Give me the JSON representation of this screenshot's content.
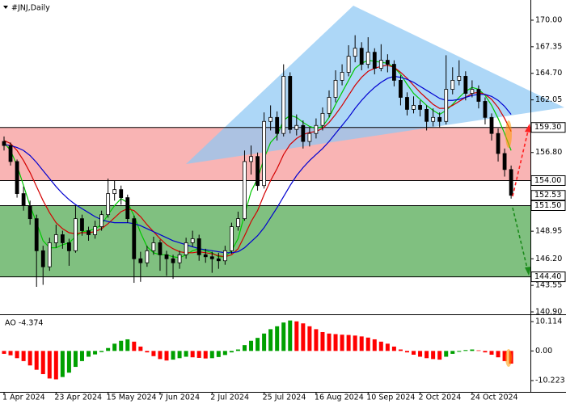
{
  "chart_data": {
    "type": "candlestick",
    "title": "#JNJ,Daily",
    "categories": [
      "1 Apr 2024",
      null,
      null,
      null,
      null,
      null,
      null,
      null,
      "23 Apr 2024",
      null,
      null,
      null,
      null,
      null,
      null,
      null,
      "15 May 2024",
      null,
      null,
      null,
      null,
      null,
      null,
      null,
      "7 Jun 2024",
      null,
      null,
      null,
      null,
      null,
      null,
      null,
      "2 Jul 2024",
      null,
      null,
      null,
      null,
      null,
      null,
      null,
      "25 Jul 2024",
      null,
      null,
      null,
      null,
      null,
      null,
      null,
      "16 Aug 2024",
      null,
      null,
      null,
      null,
      null,
      null,
      null,
      "10 Sep 2024",
      null,
      null,
      null,
      null,
      null,
      null,
      null,
      "2 Oct 2024",
      null,
      null,
      null,
      null,
      null,
      null,
      null,
      "24 Oct 2024",
      null,
      null,
      null,
      null,
      null,
      null
    ],
    "candles": {
      "open": [
        157.9,
        157.5,
        155.9,
        152.7,
        151.5,
        150.2,
        147.0,
        145.4,
        147.8,
        148.6,
        147.8,
        147.0,
        150.2,
        149.0,
        148.6,
        149.4,
        150.6,
        152.7,
        153.1,
        152.3,
        150.2,
        146.2,
        145.8,
        147.0,
        147.8,
        146.6,
        146.2,
        145.8,
        146.6,
        147.8,
        148.2,
        146.6,
        146.4,
        146.2,
        146.0,
        147.0,
        149.4,
        150.2,
        155.9,
        156.4,
        153.5,
        159.9,
        160.3,
        158.7,
        164.4,
        159.1,
        159.5,
        157.9,
        158.7,
        159.5,
        160.7,
        162.3,
        164.0,
        164.8,
        166.4,
        167.2,
        165.6,
        166.8,
        165.2,
        166.0,
        165.6,
        164.0,
        162.3,
        161.1,
        161.5,
        161.1,
        159.9,
        160.3,
        159.9,
        163.1,
        164.0,
        164.4,
        162.7,
        163.1,
        161.9,
        160.3,
        158.7,
        156.7,
        155.1
      ],
      "high": [
        158.4,
        157.8,
        156.1,
        153.4,
        152.0,
        150.6,
        147.5,
        148.3,
        149.6,
        149.0,
        148.2,
        151.5,
        150.6,
        149.4,
        150.0,
        151.0,
        154.2,
        154.0,
        153.5,
        152.6,
        150.5,
        146.9,
        147.5,
        148.4,
        148.1,
        147.0,
        146.6,
        147.0,
        148.3,
        149.0,
        148.6,
        147.2,
        146.9,
        146.8,
        147.5,
        149.8,
        150.9,
        157.0,
        157.5,
        156.8,
        160.8,
        161.5,
        160.9,
        165.6,
        164.8,
        160.6,
        160.0,
        159.3,
        160.2,
        161.3,
        163.0,
        165.0,
        165.6,
        167.5,
        168.5,
        167.8,
        168.3,
        167.2,
        167.6,
        166.6,
        166.0,
        164.5,
        162.8,
        162.4,
        162.0,
        161.5,
        161.2,
        160.8,
        166.5,
        165.3,
        166.0,
        164.9,
        164.0,
        163.5,
        162.3,
        160.7,
        159.2,
        157.2,
        155.5
      ],
      "low": [
        157.0,
        155.5,
        152.3,
        151.0,
        149.6,
        143.4,
        143.6,
        145.0,
        147.3,
        147.2,
        145.5,
        146.8,
        148.5,
        148.0,
        148.2,
        149.0,
        150.3,
        152.0,
        151.6,
        149.8,
        143.8,
        143.9,
        145.4,
        146.6,
        145.0,
        144.5,
        144.2,
        145.2,
        146.2,
        147.4,
        146.0,
        145.8,
        144.8,
        145.2,
        145.6,
        146.7,
        149.0,
        150.0,
        154.6,
        153.0,
        153.2,
        159.0,
        158.0,
        158.4,
        158.7,
        158.5,
        157.2,
        157.4,
        158.2,
        159.0,
        160.3,
        161.8,
        163.5,
        164.4,
        165.8,
        165.0,
        165.2,
        164.6,
        164.9,
        164.8,
        163.4,
        161.5,
        160.5,
        160.7,
        160.4,
        159.0,
        159.4,
        159.3,
        159.6,
        162.6,
        163.5,
        162.0,
        162.3,
        161.2,
        159.6,
        158.0,
        155.9,
        154.4,
        152.2
      ],
      "close": [
        157.5,
        155.9,
        152.7,
        151.5,
        150.2,
        147.0,
        145.4,
        147.8,
        148.6,
        147.8,
        147.0,
        150.2,
        149.0,
        148.6,
        149.4,
        150.6,
        152.7,
        153.1,
        152.3,
        150.2,
        146.2,
        145.8,
        147.0,
        147.8,
        146.6,
        146.2,
        145.8,
        146.6,
        147.8,
        148.2,
        146.6,
        146.4,
        146.2,
        146.0,
        147.0,
        149.4,
        150.2,
        155.9,
        156.4,
        153.5,
        159.9,
        160.3,
        158.7,
        164.4,
        159.1,
        159.5,
        157.9,
        158.7,
        159.5,
        160.7,
        162.3,
        164.0,
        164.8,
        166.4,
        167.2,
        165.6,
        166.8,
        165.2,
        166.0,
        165.6,
        164.0,
        162.3,
        161.1,
        161.5,
        161.1,
        159.9,
        160.3,
        159.9,
        163.1,
        164.0,
        164.4,
        162.7,
        163.1,
        161.9,
        160.3,
        158.7,
        156.7,
        155.1,
        152.53
      ]
    },
    "bull_color": "#ffffff",
    "bear_color": "#000000",
    "candle_line_color": "#000000",
    "series": [
      {
        "color": "#00c800",
        "values": [
          157.8,
          157.0,
          155.5,
          153.5,
          151.5,
          149.8,
          148.0,
          147.3,
          147.3,
          147.6,
          147.8,
          148.4,
          148.9,
          149.0,
          149.2,
          149.6,
          150.6,
          151.5,
          152.2,
          151.8,
          150.5,
          148.8,
          147.4,
          146.8,
          146.6,
          146.6,
          146.4,
          146.3,
          146.6,
          147.0,
          147.2,
          147.0,
          146.8,
          146.4,
          146.4,
          147.0,
          148.2,
          150.6,
          152.9,
          154.2,
          156.2,
          157.8,
          158.5,
          160.0,
          160.5,
          160.3,
          159.8,
          159.4,
          159.2,
          159.4,
          160.3,
          161.6,
          162.8,
          164.0,
          165.2,
          165.7,
          166.0,
          165.9,
          165.8,
          165.7,
          165.3,
          164.6,
          163.6,
          162.7,
          162.1,
          161.5,
          161.0,
          160.6,
          161.0,
          161.6,
          162.3,
          162.9,
          163.3,
          163.1,
          162.5,
          161.5,
          160.2,
          158.7,
          157.0
        ]
      },
      {
        "color": "#d40000",
        "values": [
          158.0,
          157.7,
          157.0,
          156.0,
          154.8,
          153.4,
          152.0,
          150.8,
          149.8,
          149.2,
          148.8,
          148.7,
          148.8,
          148.8,
          148.9,
          149.2,
          149.7,
          150.3,
          150.9,
          151.2,
          151.0,
          150.4,
          149.6,
          148.9,
          148.2,
          147.6,
          147.2,
          146.9,
          146.8,
          146.8,
          146.9,
          146.8,
          146.7,
          146.5,
          146.4,
          146.6,
          147.2,
          148.5,
          149.9,
          151.0,
          152.6,
          154.0,
          155.2,
          156.6,
          157.6,
          158.2,
          158.6,
          158.8,
          158.9,
          159.2,
          159.8,
          160.6,
          161.5,
          162.5,
          163.5,
          164.3,
          164.9,
          165.2,
          165.4,
          165.5,
          165.3,
          164.8,
          164.2,
          163.5,
          162.8,
          162.2,
          161.6,
          161.2,
          161.2,
          161.5,
          161.9,
          162.3,
          162.7,
          162.8,
          162.6,
          162.1,
          161.3,
          160.2,
          158.9
        ]
      },
      {
        "color": "#0000d0",
        "values": [
          157.6,
          157.5,
          157.3,
          157.0,
          156.5,
          155.8,
          155.0,
          154.2,
          153.4,
          152.7,
          152.1,
          151.6,
          151.2,
          150.8,
          150.4,
          150.1,
          149.9,
          149.8,
          149.8,
          149.8,
          149.7,
          149.5,
          149.2,
          148.9,
          148.6,
          148.3,
          148.0,
          147.8,
          147.6,
          147.4,
          147.2,
          147.1,
          147.0,
          146.9,
          146.8,
          146.8,
          146.9,
          147.3,
          147.9,
          148.5,
          149.3,
          150.3,
          151.3,
          152.4,
          153.5,
          154.5,
          155.3,
          156.0,
          156.6,
          157.2,
          157.9,
          158.7,
          159.5,
          160.3,
          161.2,
          162.0,
          162.7,
          163.3,
          163.8,
          164.2,
          164.4,
          164.3,
          164.1,
          163.8,
          163.4,
          163.0,
          162.6,
          162.2,
          162.0,
          162.0,
          162.1,
          162.3,
          162.5,
          162.6,
          162.6,
          162.4,
          162.0,
          161.4,
          160.6
        ]
      }
    ],
    "ylim": [
      140.74,
      171.61
    ],
    "yticks": [
      {
        "value": 170,
        "label": "170.00"
      },
      167.35,
      {
        "value": 164.7,
        "label": "164.70"
      },
      162.05,
      {
        "value": 156.8,
        "label": "156.80"
      },
      {
        "value": 148.95,
        "label": "148.95"
      },
      {
        "value": 146.2,
        "label": "146.20"
      },
      143.55,
      {
        "value": 140.9,
        "label": "140.90"
      }
    ],
    "zones": [
      {
        "upper": {
          "value": 159.3,
          "label": "159.30"
        },
        "lower": {
          "value": 154,
          "label": "154.00"
        },
        "color": "#f9b4b4"
      },
      {
        "upper": {
          "value": 151.5,
          "label": "151.50"
        },
        "lower": {
          "value": 144.4,
          "label": "144.40"
        },
        "color": "#80c080"
      }
    ],
    "last_price": {
      "value": 152.53,
      "label": "152.53"
    },
    "oscillator": {
      "label": "AO -4.374",
      "up_color": "#00a000",
      "down_color": "#ff0000",
      "ylim": [
        -13.84,
        11.79
      ],
      "yticks": [
        10.114,
        {
          "value": 0,
          "label": "0.00"
        },
        -10.223
      ],
      "values": [
        -1.0,
        -1.5,
        -2.5,
        -3.5,
        -5.0,
        -6.5,
        -8.0,
        -9.5,
        -9.8,
        -9.0,
        -7.5,
        -5.5,
        -3.5,
        -2.0,
        -1.2,
        -0.4,
        1.0,
        2.5,
        3.5,
        4.0,
        3.2,
        1.5,
        -0.5,
        -1.8,
        -2.8,
        -3.3,
        -3.0,
        -2.5,
        -2.0,
        -2.2,
        -2.4,
        -2.6,
        -2.5,
        -2.1,
        -1.4,
        -0.5,
        0.5,
        2.0,
        3.5,
        4.5,
        6.0,
        7.5,
        8.5,
        9.8,
        10.5,
        10.2,
        9.5,
        8.5,
        7.5,
        6.5,
        6.0,
        5.8,
        5.6,
        5.5,
        5.3,
        5.0,
        4.6,
        4.0,
        3.2,
        2.5,
        1.5,
        0.5,
        -0.5,
        -1.3,
        -2.0,
        -2.5,
        -2.8,
        -3.0,
        -2.0,
        -1.0,
        -0.3,
        0.3,
        0.5,
        0.2,
        -0.5,
        -1.3,
        -2.2,
        -3.5,
        -4.374
      ]
    }
  }
}
